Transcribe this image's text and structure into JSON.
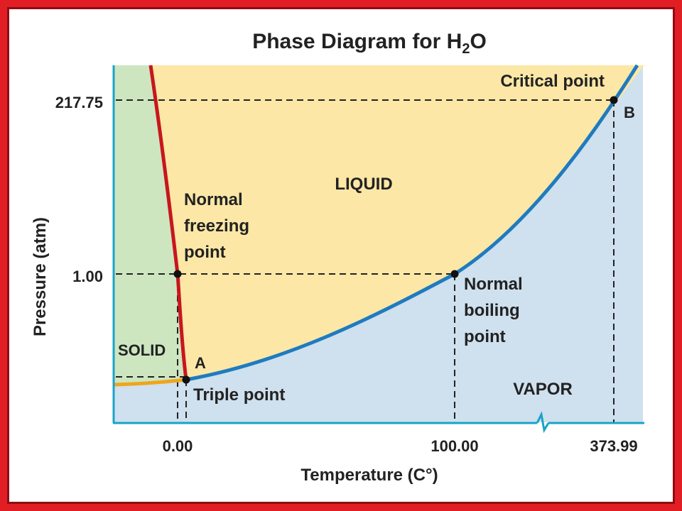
{
  "title": {
    "prefix": "Phase Diagram for H",
    "subscript": "2",
    "suffix": "O"
  },
  "axes": {
    "x_label": "Temperature (C°)",
    "y_label": "Pressure (atm)"
  },
  "ticks": {
    "x": [
      {
        "value": 0.0,
        "label": "0.00"
      },
      {
        "value": 100.0,
        "label": "100.00"
      },
      {
        "value": 373.99,
        "label": "373.99"
      }
    ],
    "y": [
      {
        "value": 217.75,
        "label": "217.75"
      },
      {
        "value": 1.0,
        "label": "1.00"
      }
    ]
  },
  "regions": {
    "solid": "SOLID",
    "liquid": "LIQUID",
    "vapor": "VAPOR"
  },
  "points": {
    "triple": {
      "letter": "A",
      "label": "Triple point"
    },
    "critical": {
      "letter": "B",
      "label": "Critical point"
    },
    "freezing": {
      "lines": [
        "Normal",
        "freezing",
        "point"
      ]
    },
    "boiling": {
      "lines": [
        "Normal",
        "boiling",
        "point"
      ]
    }
  },
  "colors": {
    "solid_region": "#cde6c0",
    "liquid_region": "#fce7a6",
    "vapor_region": "#cfe0ee",
    "fusion_curve": "#c8161d",
    "vaporization_curve": "#1f7bbf",
    "sublimation_curve": "#f0a51c",
    "axis": "#1aa3c8",
    "border": "#e01e24"
  }
}
